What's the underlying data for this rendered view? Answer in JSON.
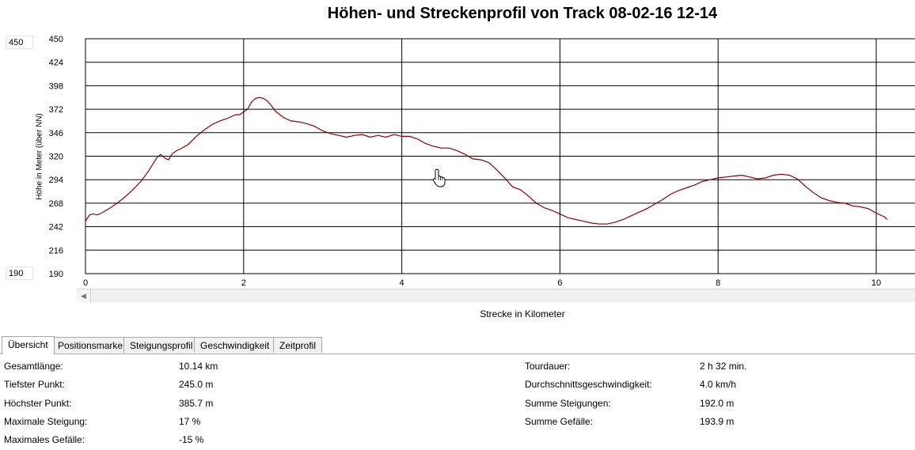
{
  "chart_data": {
    "type": "line",
    "title": "Höhen- und Streckenprofil von Track 08-02-16 12-14",
    "xlabel": "Strecke in Kilometer",
    "ylabel": "Höhe in Meter (über NN)",
    "xlim": [
      0,
      10.49
    ],
    "ylim": [
      190,
      450
    ],
    "x_ticks": [
      "0",
      "2",
      "4",
      "6",
      "8",
      "10"
    ],
    "y_ticks": [
      "450",
      "424",
      "398",
      "372",
      "346",
      "320",
      "294",
      "268",
      "242",
      "216",
      "190"
    ],
    "grid": true,
    "series": [
      {
        "color": "#8b0000",
        "x": [
          0.0,
          0.05,
          0.1,
          0.15,
          0.2,
          0.3,
          0.4,
          0.5,
          0.6,
          0.7,
          0.8,
          0.9,
          0.95,
          1.0,
          1.05,
          1.1,
          1.15,
          1.2,
          1.3,
          1.4,
          1.5,
          1.6,
          1.7,
          1.8,
          1.9,
          1.95,
          2.0,
          2.05,
          2.1,
          2.15,
          2.2,
          2.25,
          2.3,
          2.35,
          2.4,
          2.5,
          2.6,
          2.7,
          2.8,
          2.9,
          3.0,
          3.1,
          3.2,
          3.3,
          3.4,
          3.5,
          3.6,
          3.7,
          3.8,
          3.9,
          4.0,
          4.1,
          4.2,
          4.3,
          4.4,
          4.5,
          4.6,
          4.7,
          4.8,
          4.9,
          5.0,
          5.1,
          5.2,
          5.3,
          5.4,
          5.5,
          5.6,
          5.7,
          5.8,
          5.9,
          6.0,
          6.1,
          6.2,
          6.3,
          6.4,
          6.5,
          6.6,
          6.7,
          6.8,
          6.9,
          7.0,
          7.1,
          7.2,
          7.3,
          7.4,
          7.5,
          7.6,
          7.7,
          7.8,
          7.9,
          8.0,
          8.1,
          8.2,
          8.3,
          8.4,
          8.5,
          8.6,
          8.7,
          8.8,
          8.9,
          9.0,
          9.1,
          9.2,
          9.3,
          9.4,
          9.5,
          9.6,
          9.7,
          9.8,
          9.9,
          10.0,
          10.1,
          10.14
        ],
        "y": [
          248,
          255,
          256,
          255,
          257,
          262,
          268,
          275,
          283,
          292,
          304,
          318,
          322,
          318,
          316,
          323,
          326,
          328,
          333,
          342,
          349,
          355,
          359,
          362,
          366,
          366,
          369,
          372,
          380,
          384,
          385,
          384,
          381,
          376,
          370,
          363,
          359,
          358,
          356,
          353,
          348,
          345,
          343,
          341,
          343,
          344,
          341,
          343,
          341,
          344,
          342,
          342,
          339,
          334,
          331,
          329,
          329,
          326,
          322,
          317,
          316,
          313,
          305,
          296,
          286,
          283,
          276,
          268,
          263,
          260,
          256,
          252,
          250,
          248,
          246,
          245,
          245,
          247,
          250,
          254,
          258,
          262,
          267,
          272,
          278,
          282,
          285,
          288,
          292,
          294,
          296,
          297,
          298,
          299,
          297,
          295,
          296,
          299,
          300,
          299,
          295,
          287,
          280,
          274,
          271,
          269,
          268,
          265,
          264,
          262,
          257,
          253,
          250
        ]
      }
    ]
  },
  "y_range_inputs": {
    "max": "450",
    "min": "190"
  },
  "tabs": [
    {
      "label": "Übersicht",
      "active": true
    },
    {
      "label": "Positionsmarke",
      "active": false
    },
    {
      "label": "Steigungsprofil",
      "active": false
    },
    {
      "label": "Geschwindigkeit",
      "active": false
    },
    {
      "label": "Zeitprofil",
      "active": false
    }
  ],
  "overview": {
    "left": [
      {
        "label": "Gesamtlänge:",
        "value": "10.14 km"
      },
      {
        "label": "Tiefster Punkt:",
        "value": "245.0 m"
      },
      {
        "label": "Höchster Punkt:",
        "value": "385.7 m"
      },
      {
        "label": "Maximale Steigung:",
        "value": "17 %"
      },
      {
        "label": "Maximales Gefälle:",
        "value": "-15 %"
      }
    ],
    "right": [
      {
        "label": "Tourdauer:",
        "value": "2 h 32 min."
      },
      {
        "label": "Durchschnittsgeschwindigkeit:",
        "value": "4.0 km/h"
      },
      {
        "label": "Summe Steigungen:",
        "value": "192.0 m"
      },
      {
        "label": "Summe Gefälle:",
        "value": "193.9 m"
      }
    ]
  },
  "icons": {
    "cursor": "hand-pointer-icon",
    "scroll_left": "arrow-left-icon"
  }
}
